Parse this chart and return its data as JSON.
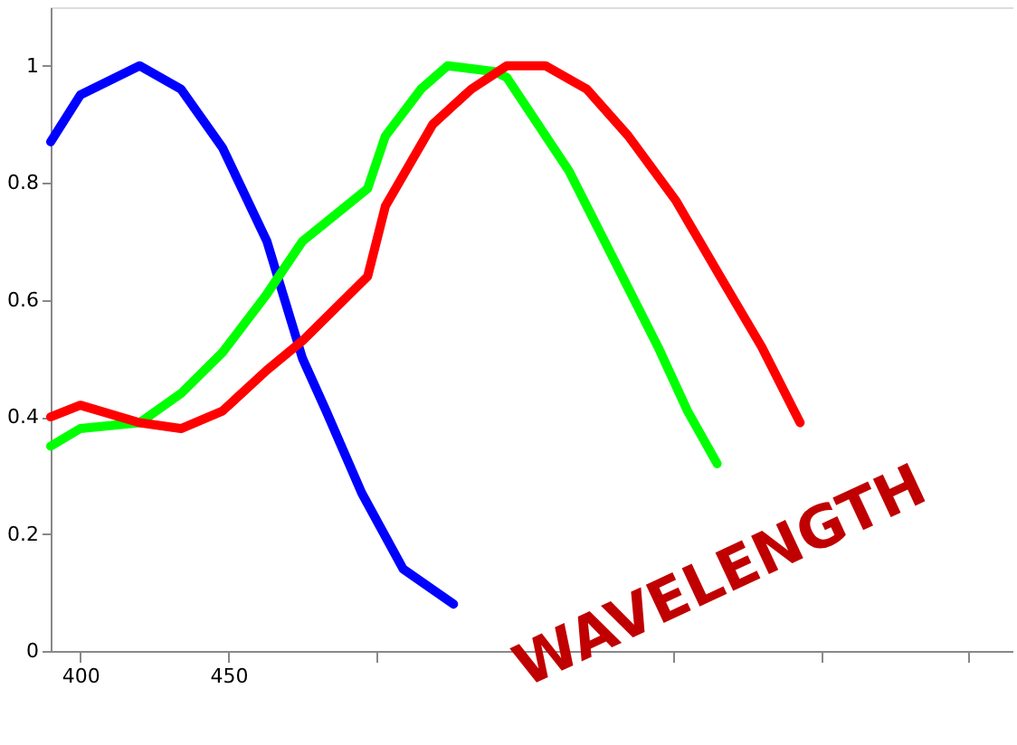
{
  "chart_data": {
    "type": "line",
    "annotations": [
      "WAVELENGTH"
    ],
    "xlim": [
      390,
      715
    ],
    "ylim": [
      0,
      1.1
    ],
    "xticks": [
      400,
      450,
      {
        "value": 500,
        "label": null
      },
      {
        "value": 550,
        "label": null
      },
      {
        "value": 600,
        "label": null
      },
      {
        "value": 650,
        "label": null
      },
      {
        "value": 700,
        "label": null
      }
    ],
    "yticks": [
      0,
      0.2,
      0.4,
      0.6,
      0.8,
      1
    ],
    "grid": false,
    "marker": "none",
    "line_style": "solid",
    "series": [
      {
        "color": "#0000ff",
        "x": [
          390,
          400,
          420,
          434,
          448,
          463,
          469,
          475,
          483,
          495,
          509,
          526
        ],
        "values": [
          0.87,
          0.95,
          1.0,
          0.96,
          0.86,
          0.7,
          0.6,
          0.5,
          0.41,
          0.27,
          0.14,
          0.08
        ]
      },
      {
        "color": "#00ff00",
        "x": [
          390,
          400,
          420,
          434,
          448,
          463,
          475,
          497,
          503,
          515,
          524,
          540,
          544,
          565,
          579,
          595,
          605,
          615
        ],
        "values": [
          0.35,
          0.38,
          0.39,
          0.44,
          0.51,
          0.61,
          0.7,
          0.79,
          0.88,
          0.96,
          1.0,
          0.99,
          0.98,
          0.82,
          0.68,
          0.52,
          0.41,
          0.32
        ]
      },
      {
        "color": "#ff0000",
        "x": [
          390,
          400,
          420,
          434,
          448,
          463,
          475,
          497,
          503,
          519,
          532,
          544,
          557,
          571,
          585,
          601,
          616,
          630,
          643
        ],
        "values": [
          0.4,
          0.42,
          0.39,
          0.38,
          0.41,
          0.48,
          0.53,
          0.64,
          0.76,
          0.9,
          0.96,
          1.0,
          1.0,
          0.96,
          0.88,
          0.77,
          0.64,
          0.52,
          0.39
        ]
      }
    ]
  }
}
